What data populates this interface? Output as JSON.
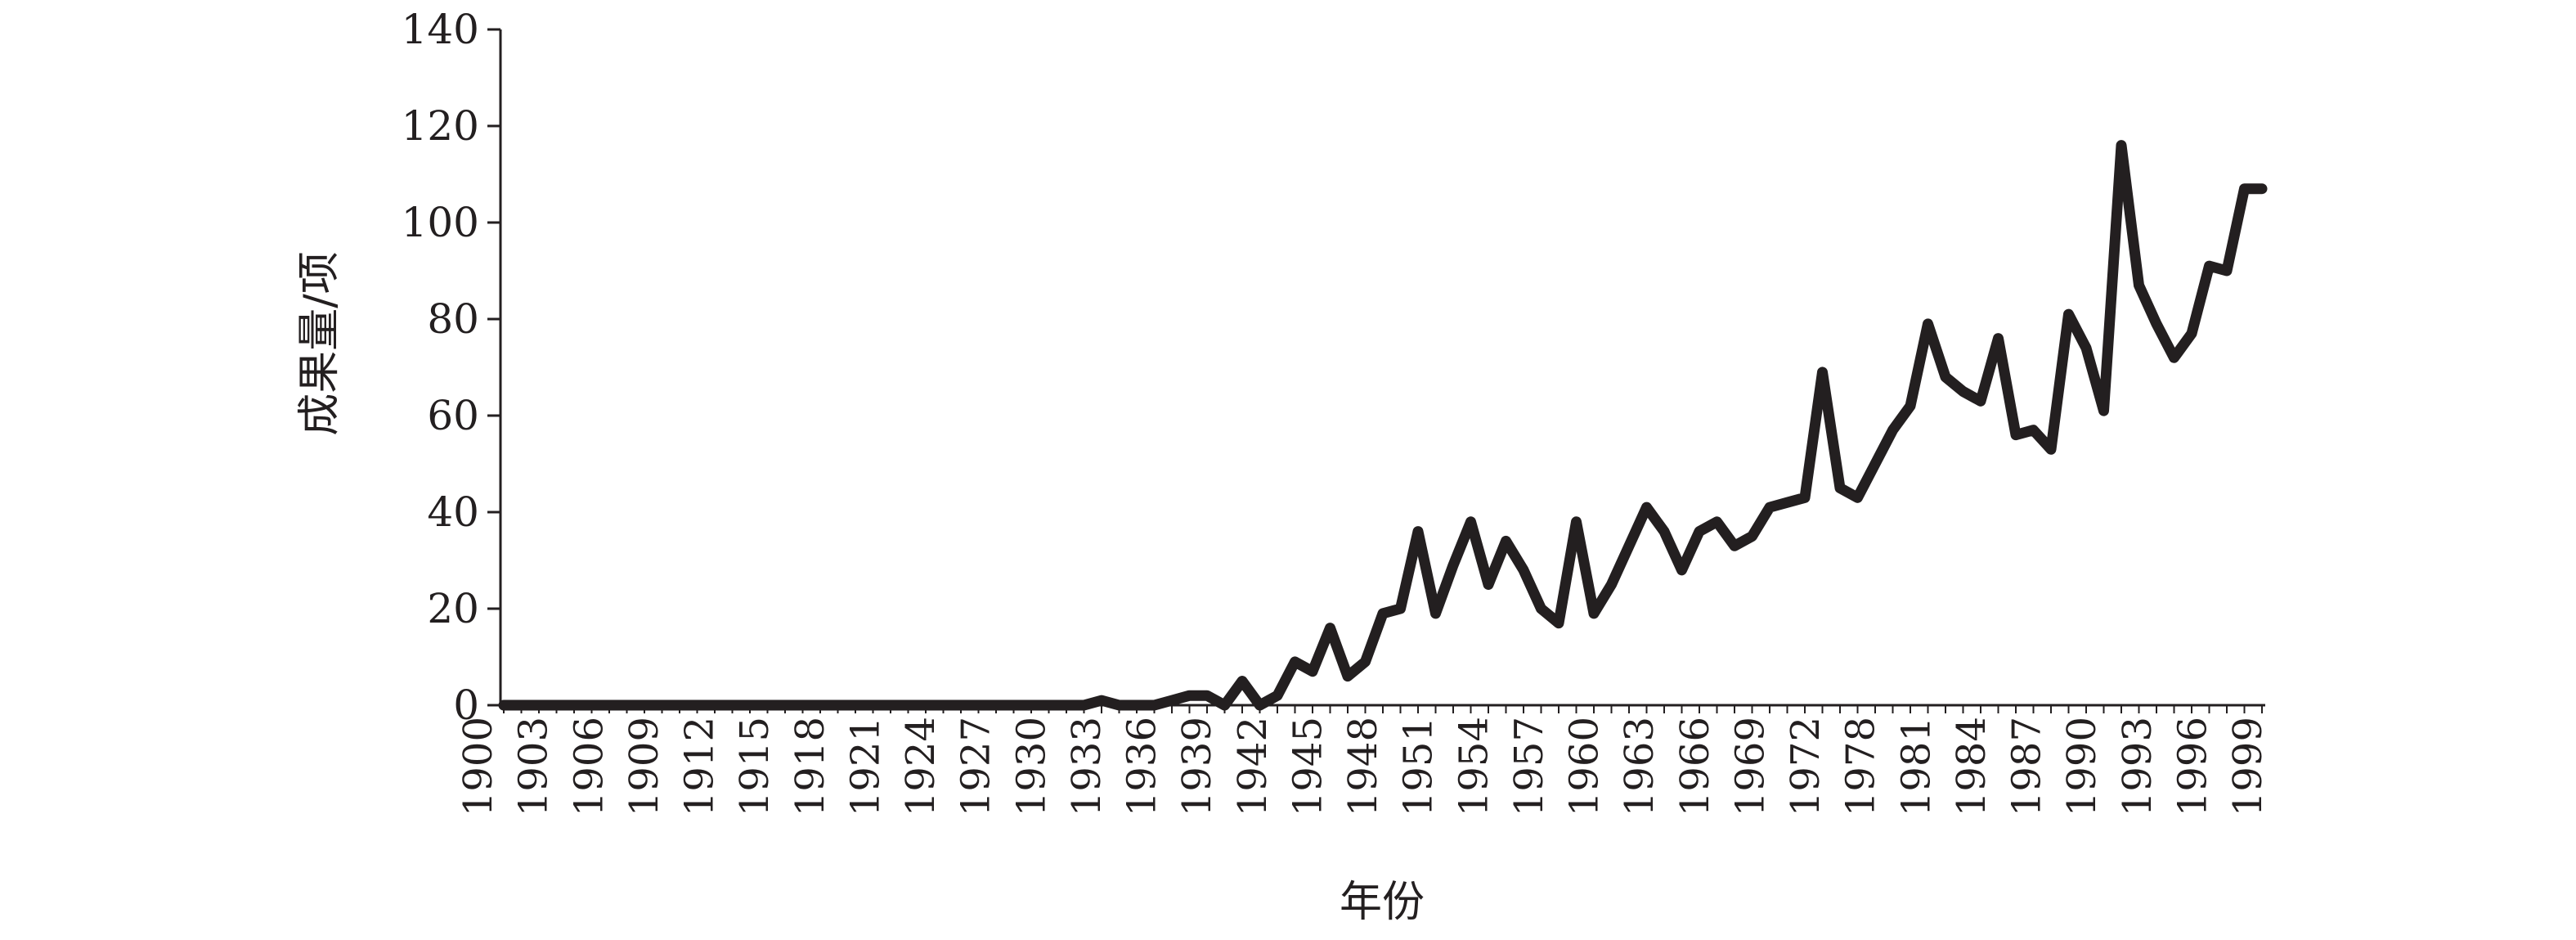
{
  "chart_data": {
    "type": "line",
    "xlabel": "年份",
    "ylabel": "成果量/项",
    "ylim": [
      0,
      140
    ],
    "yticks": [
      0,
      20,
      40,
      60,
      80,
      100,
      120,
      140
    ],
    "grid": false,
    "legend": "none",
    "colors": {
      "line": "#231f20",
      "axis": "#231f20",
      "text": "#231f20"
    },
    "categories": [
      "1900",
      "1901",
      "1902",
      "1903",
      "1904",
      "1905",
      "1906",
      "1907",
      "1908",
      "1909",
      "1910",
      "1911",
      "1912",
      "1913",
      "1914",
      "1915",
      "1916",
      "1917",
      "1918",
      "1919",
      "1920",
      "1921",
      "1922",
      "1923",
      "1924",
      "1925",
      "1926",
      "1927",
      "1928",
      "1929",
      "1930",
      "1931",
      "1932",
      "1933",
      "1934",
      "1935",
      "1936",
      "1937",
      "1938",
      "1939",
      "1940",
      "1941",
      "1942",
      "1943",
      "1944",
      "1945",
      "1946",
      "1947",
      "1948",
      "1949",
      "1950",
      "1951",
      "1952",
      "1953",
      "1954",
      "1955",
      "1956",
      "1957",
      "1958",
      "1959",
      "1960",
      "1961",
      "1962",
      "1963",
      "1964",
      "1965",
      "1966",
      "1967",
      "1968",
      "1969",
      "1970",
      "1971",
      "1972",
      "1973",
      "1974",
      "1975",
      "1976",
      "1977",
      "1978",
      "1979",
      "1980",
      "1981",
      "1982",
      "1983",
      "1984",
      "1985",
      "1986",
      "1987",
      "1988",
      "1989",
      "1990",
      "1991",
      "1992",
      "1993",
      "1994",
      "1995",
      "1996",
      "1997",
      "1998",
      "1999",
      "2000"
    ],
    "tick_labels": [
      "1900",
      "1903",
      "1906",
      "1909",
      "1912",
      "1915",
      "1918",
      "1921",
      "1924",
      "1927",
      "1930",
      "1933",
      "1936",
      "1939",
      "1942",
      "1945",
      "1948",
      "1951",
      "1954",
      "1957",
      "1960",
      "1963",
      "1966",
      "1969",
      "1972",
      "1978",
      "1981",
      "1984",
      "1987",
      "1990",
      "1993",
      "1996",
      "1999"
    ],
    "series": [
      {
        "values": [
          0,
          0,
          0,
          0,
          0,
          0,
          0,
          0,
          0,
          0,
          0,
          0,
          0,
          0,
          0,
          0,
          0,
          0,
          0,
          0,
          0,
          0,
          0,
          0,
          0,
          0,
          0,
          0,
          0,
          0,
          0,
          0,
          0,
          0,
          1,
          0,
          0,
          0,
          1,
          2,
          2,
          0,
          5,
          0,
          2,
          9,
          7,
          16,
          6,
          9,
          19,
          20,
          36,
          19,
          29,
          38,
          25,
          34,
          28,
          20,
          17,
          38,
          19,
          25,
          33,
          41,
          36,
          28,
          36,
          38,
          33,
          35,
          41,
          42,
          43,
          69,
          45,
          43,
          50,
          57,
          62,
          79,
          68,
          65,
          63,
          76,
          56,
          57,
          53,
          81,
          74,
          61,
          116,
          87,
          79,
          72,
          77,
          91,
          90,
          107,
          107
        ]
      }
    ]
  }
}
